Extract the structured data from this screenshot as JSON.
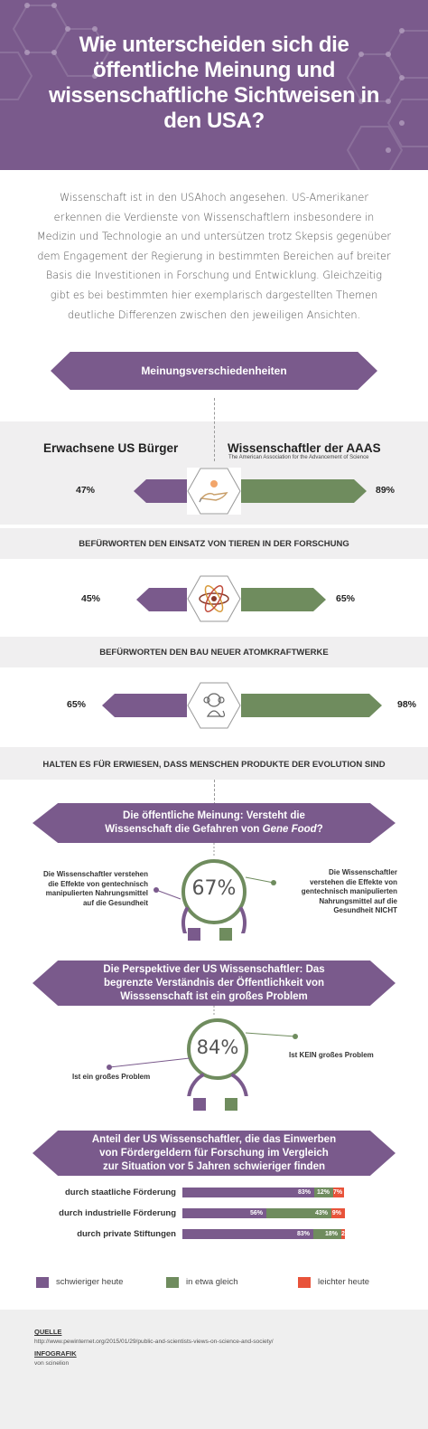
{
  "header": {
    "title_lines": [
      "Wie unterscheiden sich die",
      "öffentliche Meinung und",
      "wissenschaftliche Sichtweisen in",
      "den USA?"
    ]
  },
  "intro": {
    "text": "Wissenschaft ist in den USAhoch angesehen. US-Amerikaner erkennen die Verdienste von Wissenschaftlern insbesondere in Medizin und Technologie an und untersützen trotz Skepsis gegenüber dem Engagement der Regierung in bestimmten  Bereichen auf breiter Basis die Investitionen in Forschung und Entwicklung. Gleichzeitig gibt es bei bestimmten hier exemplarisch dargestellten Themen deutliche Differenzen zwischen den jeweiligen Ansichten."
  },
  "section1": {
    "banner": "Meinungsverschiedenheiten",
    "left_head": "Erwachsene US Bürger",
    "right_head": "Wissenschaftler der AAAS",
    "right_sub": "The American Association for the Advancement of Science",
    "rows": [
      {
        "left_pct": "47%",
        "right_pct": "89%",
        "left_value": 47,
        "right_value": 89,
        "icon": "hand-with-mouse-icon",
        "statement": "BEFÜRWORTEN DEN EINSATZ VON TIEREN IN DER FORSCHUNG"
      },
      {
        "left_pct": "45%",
        "right_pct": "65%",
        "left_value": 45,
        "right_value": 65,
        "icon": "atom-icon",
        "statement": "BEFÜRWORTEN DEN BAU NEUER ATOMKRAFTWERKE"
      },
      {
        "left_pct": "65%",
        "right_pct": "98%",
        "left_value": 65,
        "right_value": 98,
        "icon": "monkey-icon",
        "statement": "HALTEN ES FÜR ERWIESEN, DASS MENSCHEN PRODUKTE DER EVOLUTION SIND"
      }
    ]
  },
  "section2": {
    "banner_line1": "Die öffentliche Meinung: Versteht die",
    "banner_line2_prefix": "Wissenschaft die Gefahren von ",
    "banner_line2_em": "Gene Food",
    "banner_line2_suffix": "?",
    "percent": "67%",
    "percent_value": 67,
    "left_text": [
      "Die Wissenschaftler verstehen",
      "die Effekte von gentechnisch",
      "manipulierten Nahrungsmittel",
      "auf die Gesundheit"
    ],
    "right_text": [
      "Die Wissenschaftler",
      "verstehen die Effekte von",
      "gentechnisch manipulierten",
      "Nahrungsmittel auf die",
      "Gesundheit NICHT"
    ]
  },
  "section3": {
    "banner_lines": [
      "Die Perspektive der US Wissenschaftler: Das",
      "begrenzte Verständnis der Öffentlichkeit von",
      "Wisssenschaft ist ein großes Problem"
    ],
    "percent": "84%",
    "percent_value": 84,
    "left_text": "Ist ein großes Problem",
    "right_text": "Ist KEIN großes Problem"
  },
  "section4": {
    "banner_lines": [
      "Anteil der US Wissenschaftler, die das Einwerben",
      "von Fördergeldern für Forschung im Vergleich",
      "zur Situation vor 5 Jahren schwieriger finden"
    ],
    "rows": [
      {
        "label": "durch staatliche Förderung",
        "segments": [
          {
            "label": "83%",
            "value": 83
          },
          {
            "label": "12%",
            "value": 12
          },
          {
            "label": "7%",
            "value": 7
          }
        ]
      },
      {
        "label": "durch industrielle Förderung",
        "segments": [
          {
            "label": "56%",
            "value": 56
          },
          {
            "label": "43%",
            "value": 43
          },
          {
            "label": "9%",
            "value": 9
          }
        ]
      },
      {
        "label": "durch private Stiftungen",
        "segments": [
          {
            "label": "83%",
            "value": 83
          },
          {
            "label": "18%",
            "value": 18
          },
          {
            "label": "2%",
            "value": 2
          }
        ]
      }
    ]
  },
  "legend": {
    "items": [
      {
        "label": "schwieriger heute",
        "color": "#7a5a8c"
      },
      {
        "label": "in etwa gleich",
        "color": "#6f8c5e"
      },
      {
        "label": "leichter heute",
        "color": "#e8533a"
      }
    ]
  },
  "footer": {
    "source_label": "QUELLE",
    "source_url": "http://www.pewinternet.org/2015/01/29/public-and-scientists-views-on-science-and-society/",
    "infographic_label": "INFOGRAFIK",
    "infographic_by": "von scinelion"
  },
  "colors": {
    "purple": "#7a5a8c",
    "green": "#6f8c5e",
    "red": "#e8533a"
  }
}
